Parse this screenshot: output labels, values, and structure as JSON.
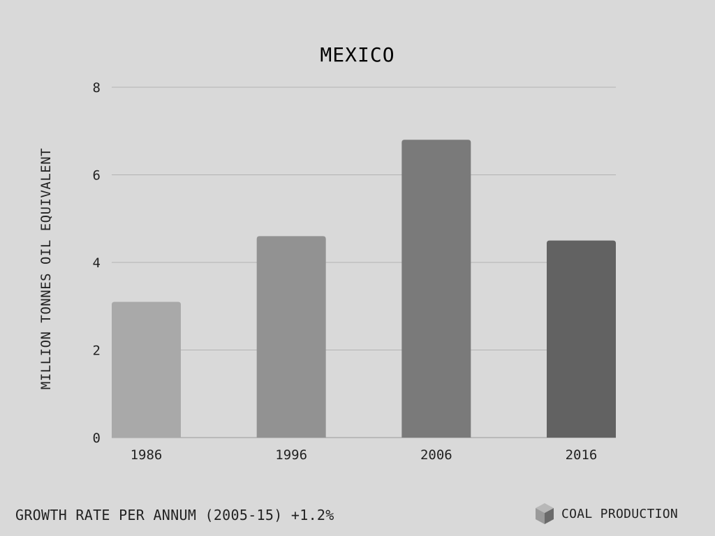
{
  "chart_data": {
    "type": "bar",
    "title": "MEXICO",
    "ylabel": "MILLION TONNES OIL EQUIVALENT",
    "xlabel": "",
    "categories": [
      "1986",
      "1996",
      "2006",
      "2016"
    ],
    "values": [
      3.1,
      4.6,
      6.8,
      4.5
    ],
    "ylim": [
      0,
      8
    ],
    "yticks": [
      "0",
      "2",
      "4",
      "6",
      "8"
    ],
    "grid": true,
    "bar_colors": [
      "#a9a9a9",
      "#929292",
      "#7a7a7a",
      "#626262"
    ]
  },
  "footer": {
    "growth_rate": "GROWTH RATE PER ANNUM (2005-15) +1.2%",
    "legend_label": "COAL PRODUCTION",
    "legend_icon": "cube-icon"
  }
}
